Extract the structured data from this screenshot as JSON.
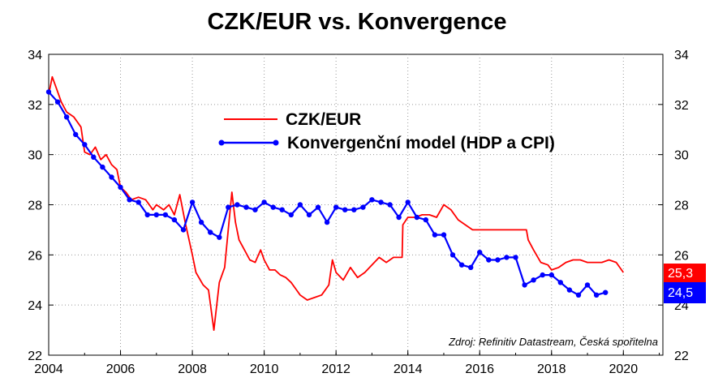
{
  "chart_data": {
    "type": "line",
    "title": "CZK/EUR vs. Konvergence",
    "xlabel": "",
    "ylabel": "",
    "xlim": [
      2004,
      2021.1
    ],
    "ylim": [
      22,
      34
    ],
    "x_ticks": [
      "2004",
      "2006",
      "2008",
      "2010",
      "2012",
      "2014",
      "2016",
      "2018",
      "2020"
    ],
    "y_ticks": [
      "22",
      "24",
      "26",
      "28",
      "30",
      "32",
      "34"
    ],
    "grid": true,
    "legend_position": "top-center",
    "source_note": "Zdroj: Refinitiv Datastream, Česká spořitelna",
    "series": [
      {
        "name": "CZK/EUR",
        "color": "#ff0000",
        "style": "line",
        "last_value_label": "25,3",
        "points": [
          [
            2004.0,
            32.4
          ],
          [
            2004.1,
            33.1
          ],
          [
            2004.2,
            32.7
          ],
          [
            2004.35,
            32.1
          ],
          [
            2004.5,
            31.7
          ],
          [
            2004.7,
            31.5
          ],
          [
            2004.9,
            31.1
          ],
          [
            2005.0,
            30.1
          ],
          [
            2005.15,
            30.0
          ],
          [
            2005.3,
            30.3
          ],
          [
            2005.45,
            29.8
          ],
          [
            2005.6,
            30.0
          ],
          [
            2005.75,
            29.6
          ],
          [
            2005.9,
            29.4
          ],
          [
            2006.0,
            28.7
          ],
          [
            2006.15,
            28.5
          ],
          [
            2006.3,
            28.2
          ],
          [
            2006.5,
            28.3
          ],
          [
            2006.7,
            28.2
          ],
          [
            2006.9,
            27.8
          ],
          [
            2007.0,
            28.0
          ],
          [
            2007.2,
            27.8
          ],
          [
            2007.35,
            28.0
          ],
          [
            2007.5,
            27.6
          ],
          [
            2007.65,
            28.4
          ],
          [
            2007.8,
            27.3
          ],
          [
            2008.0,
            26.0
          ],
          [
            2008.1,
            25.3
          ],
          [
            2008.3,
            24.8
          ],
          [
            2008.45,
            24.6
          ],
          [
            2008.6,
            23.0
          ],
          [
            2008.75,
            24.9
          ],
          [
            2008.9,
            25.5
          ],
          [
            2009.0,
            27.0
          ],
          [
            2009.1,
            28.5
          ],
          [
            2009.2,
            27.3
          ],
          [
            2009.3,
            26.6
          ],
          [
            2009.45,
            26.2
          ],
          [
            2009.6,
            25.8
          ],
          [
            2009.75,
            25.7
          ],
          [
            2009.9,
            26.2
          ],
          [
            2010.0,
            25.8
          ],
          [
            2010.15,
            25.4
          ],
          [
            2010.3,
            25.4
          ],
          [
            2010.45,
            25.2
          ],
          [
            2010.6,
            25.1
          ],
          [
            2010.75,
            24.9
          ],
          [
            2010.9,
            24.6
          ],
          [
            2011.0,
            24.4
          ],
          [
            2011.2,
            24.2
          ],
          [
            2011.4,
            24.3
          ],
          [
            2011.6,
            24.4
          ],
          [
            2011.8,
            24.8
          ],
          [
            2011.9,
            25.8
          ],
          [
            2012.0,
            25.3
          ],
          [
            2012.2,
            25.0
          ],
          [
            2012.4,
            25.5
          ],
          [
            2012.6,
            25.1
          ],
          [
            2012.8,
            25.3
          ],
          [
            2013.0,
            25.6
          ],
          [
            2013.2,
            25.9
          ],
          [
            2013.4,
            25.7
          ],
          [
            2013.6,
            25.9
          ],
          [
            2013.8,
            25.9
          ],
          [
            2013.84,
            25.9
          ],
          [
            2013.86,
            27.2
          ],
          [
            2014.0,
            27.5
          ],
          [
            2014.2,
            27.5
          ],
          [
            2014.4,
            27.6
          ],
          [
            2014.6,
            27.6
          ],
          [
            2014.8,
            27.5
          ],
          [
            2015.0,
            28.0
          ],
          [
            2015.2,
            27.8
          ],
          [
            2015.4,
            27.4
          ],
          [
            2015.6,
            27.2
          ],
          [
            2015.8,
            27.0
          ],
          [
            2016.0,
            27.0
          ],
          [
            2016.5,
            27.0
          ],
          [
            2017.0,
            27.0
          ],
          [
            2017.3,
            27.0
          ],
          [
            2017.35,
            26.6
          ],
          [
            2017.5,
            26.2
          ],
          [
            2017.7,
            25.7
          ],
          [
            2017.9,
            25.6
          ],
          [
            2018.0,
            25.4
          ],
          [
            2018.2,
            25.5
          ],
          [
            2018.4,
            25.7
          ],
          [
            2018.6,
            25.8
          ],
          [
            2018.8,
            25.8
          ],
          [
            2019.0,
            25.7
          ],
          [
            2019.2,
            25.7
          ],
          [
            2019.4,
            25.7
          ],
          [
            2019.6,
            25.8
          ],
          [
            2019.8,
            25.7
          ],
          [
            2020.0,
            25.3
          ]
        ]
      },
      {
        "name": "Konvergenční model (HDP a CPI)",
        "color": "#0000ff",
        "style": "line-markers",
        "last_value_label": "24,5",
        "points": [
          [
            2004.0,
            32.5
          ],
          [
            2004.25,
            32.1
          ],
          [
            2004.5,
            31.5
          ],
          [
            2004.75,
            30.8
          ],
          [
            2005.0,
            30.4
          ],
          [
            2005.25,
            29.9
          ],
          [
            2005.5,
            29.5
          ],
          [
            2005.75,
            29.1
          ],
          [
            2006.0,
            28.7
          ],
          [
            2006.25,
            28.2
          ],
          [
            2006.5,
            28.1
          ],
          [
            2006.75,
            27.6
          ],
          [
            2007.0,
            27.6
          ],
          [
            2007.25,
            27.6
          ],
          [
            2007.5,
            27.4
          ],
          [
            2007.75,
            27.0
          ],
          [
            2008.0,
            28.1
          ],
          [
            2008.25,
            27.3
          ],
          [
            2008.5,
            26.9
          ],
          [
            2008.75,
            26.7
          ],
          [
            2009.0,
            27.9
          ],
          [
            2009.25,
            28.0
          ],
          [
            2009.5,
            27.9
          ],
          [
            2009.75,
            27.8
          ],
          [
            2010.0,
            28.1
          ],
          [
            2010.25,
            27.9
          ],
          [
            2010.5,
            27.8
          ],
          [
            2010.75,
            27.6
          ],
          [
            2011.0,
            28.0
          ],
          [
            2011.25,
            27.6
          ],
          [
            2011.5,
            27.9
          ],
          [
            2011.75,
            27.3
          ],
          [
            2012.0,
            27.9
          ],
          [
            2012.25,
            27.8
          ],
          [
            2012.5,
            27.8
          ],
          [
            2012.75,
            27.9
          ],
          [
            2013.0,
            28.2
          ],
          [
            2013.25,
            28.1
          ],
          [
            2013.5,
            28.0
          ],
          [
            2013.75,
            27.5
          ],
          [
            2014.0,
            28.1
          ],
          [
            2014.25,
            27.5
          ],
          [
            2014.5,
            27.4
          ],
          [
            2014.75,
            26.8
          ],
          [
            2015.0,
            26.8
          ],
          [
            2015.25,
            26.0
          ],
          [
            2015.5,
            25.6
          ],
          [
            2015.75,
            25.5
          ],
          [
            2016.0,
            26.1
          ],
          [
            2016.25,
            25.8
          ],
          [
            2016.5,
            25.8
          ],
          [
            2016.75,
            25.9
          ],
          [
            2017.0,
            25.9
          ],
          [
            2017.25,
            24.8
          ],
          [
            2017.5,
            25.0
          ],
          [
            2017.75,
            25.2
          ],
          [
            2018.0,
            25.2
          ],
          [
            2018.25,
            24.9
          ],
          [
            2018.5,
            24.6
          ],
          [
            2018.75,
            24.4
          ],
          [
            2019.0,
            24.8
          ],
          [
            2019.25,
            24.4
          ],
          [
            2019.5,
            24.5
          ]
        ]
      }
    ]
  }
}
